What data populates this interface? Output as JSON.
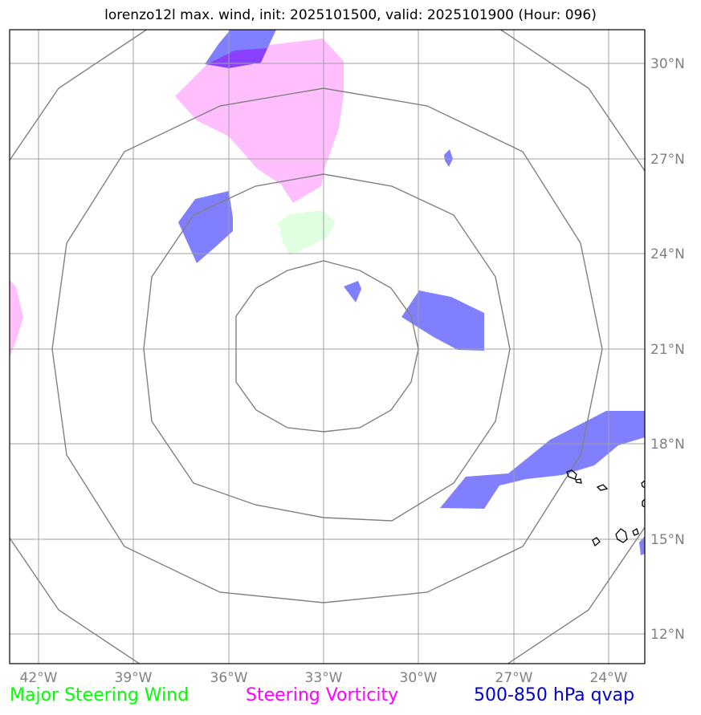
{
  "title": "lorenzo12l max. wind, init: 2025101500, valid: 2025101900 (Hour: 096)",
  "lon_labels": [
    "42°W",
    "39°W",
    "36°W",
    "33°W",
    "30°W",
    "27°W",
    "24°W"
  ],
  "lat_labels": [
    "30°N",
    "27°N",
    "24°N",
    "21°N",
    "18°N",
    "15°N",
    "12°N"
  ],
  "legend": {
    "wind": {
      "label": "Major Steering Wind",
      "color": "#00ff00"
    },
    "vorticity": {
      "label": "Steering Vorticity",
      "color": "#ff00ff"
    },
    "qvap": {
      "label": "500-850 hPa qvap",
      "color": "#0000cc"
    }
  },
  "colors": {
    "qvap_fill": "#8080ff",
    "vorticity_fill": "#ffbfff",
    "wind_fill": "#e0ffe0",
    "overlap_fill": "#8c40ff",
    "range_rings": "#808080",
    "gridlines": "#a0a0a0",
    "coastline": "#000000"
  }
}
